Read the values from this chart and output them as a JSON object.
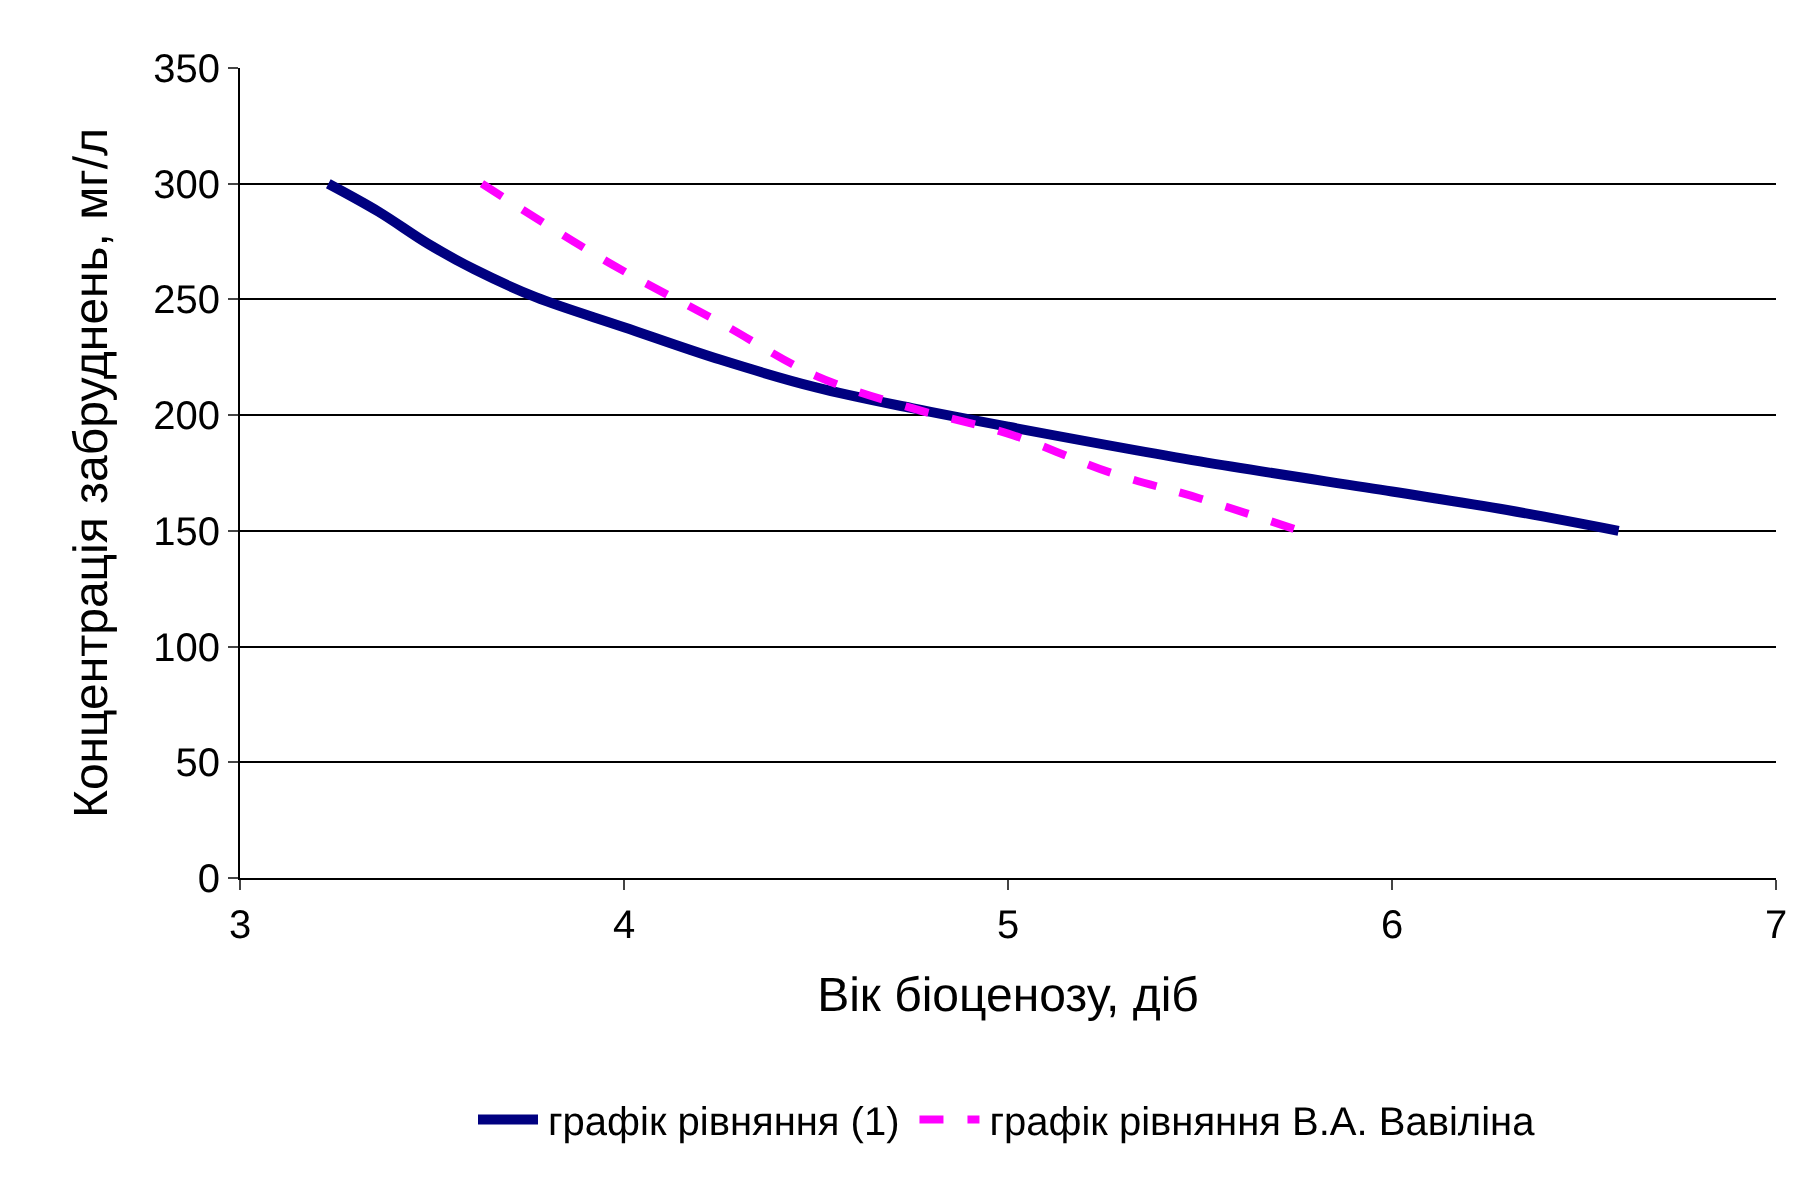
{
  "chart_data": {
    "type": "line",
    "xlabel": "Вік біоценозу, діб",
    "ylabel": "Концентрація забруднень, мг/л",
    "xlim": [
      3,
      7
    ],
    "xticks": [
      3,
      4,
      5,
      6,
      7
    ],
    "ylim": [
      0,
      350
    ],
    "yticks": [
      0,
      50,
      100,
      150,
      200,
      250,
      300,
      350
    ],
    "grid": "y",
    "legend": "bottom",
    "marker": "none",
    "series": [
      {
        "name": "графік рівняння (1)",
        "color": "#000080",
        "line_style": "solid",
        "x": [
          3.23,
          3.36,
          3.49,
          3.61,
          3.77,
          4.0,
          4.25,
          4.5,
          4.75,
          5.0,
          5.5,
          6.0,
          6.3,
          6.59
        ],
        "values": [
          300,
          288,
          274,
          263,
          251,
          238,
          224,
          212,
          203,
          195,
          180,
          167,
          159,
          150
        ]
      },
      {
        "name": "графік рівняння В.А. Вавіліна",
        "color": "#ff00ff",
        "line_style": "dashed",
        "x": [
          3.63,
          3.97,
          4.25,
          4.5,
          4.75,
          5.0,
          5.27,
          5.5,
          5.76
        ],
        "values": [
          300,
          265,
          240,
          217,
          203,
          192,
          175,
          164,
          150
        ]
      }
    ]
  }
}
